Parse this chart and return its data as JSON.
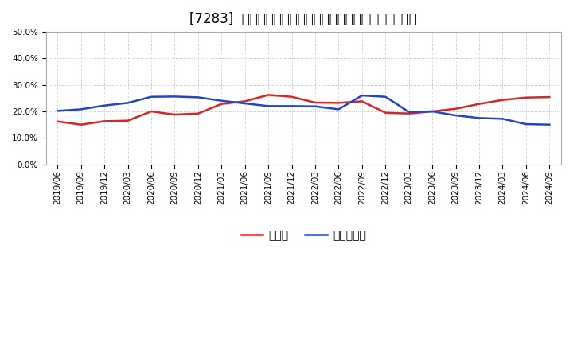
{
  "title": "[7283]  現預金、有利子負債の総資産に対する比率の推移",
  "ylim": [
    0.0,
    0.5
  ],
  "yticks": [
    0.0,
    0.1,
    0.2,
    0.3,
    0.4,
    0.5
  ],
  "x_labels": [
    "2019/06",
    "2019/09",
    "2019/12",
    "2020/03",
    "2020/06",
    "2020/09",
    "2020/12",
    "2021/03",
    "2021/06",
    "2021/09",
    "2021/12",
    "2022/03",
    "2022/06",
    "2022/09",
    "2022/12",
    "2023/03",
    "2023/06",
    "2023/09",
    "2023/12",
    "2024/03",
    "2024/06",
    "2024/09"
  ],
  "cash": [
    0.162,
    0.15,
    0.163,
    0.165,
    0.2,
    0.188,
    0.192,
    0.228,
    0.238,
    0.262,
    0.255,
    0.233,
    0.232,
    0.238,
    0.195,
    0.192,
    0.2,
    0.21,
    0.228,
    0.243,
    0.252,
    0.254
  ],
  "debt": [
    0.202,
    0.208,
    0.222,
    0.232,
    0.255,
    0.256,
    0.253,
    0.24,
    0.23,
    0.22,
    0.22,
    0.219,
    0.208,
    0.26,
    0.255,
    0.198,
    0.2,
    0.185,
    0.175,
    0.172,
    0.152,
    0.15
  ],
  "cash_color": "#dd2222",
  "debt_color": "#2244cc",
  "legend_cash": "現預金",
  "legend_debt": "有利子負債",
  "background_color": "#ffffff",
  "grid_color": "#bbbbbb",
  "title_fontsize": 12,
  "tick_fontsize": 7.5,
  "legend_fontsize": 10
}
